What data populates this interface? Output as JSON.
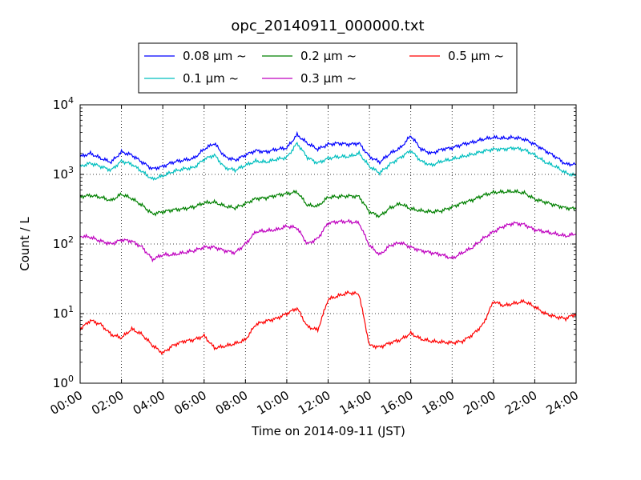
{
  "chart_data": {
    "type": "line",
    "title": "opc_20140911_000000.txt",
    "xlabel": "Time on 2014-09-11 (JST)",
    "ylabel": "Count / L",
    "xlim": [
      0,
      24
    ],
    "ylim": [
      1,
      10000
    ],
    "yscale": "log",
    "grid": true,
    "legend_placement": "top-center",
    "x_ticks": [
      {
        "value": 0,
        "label": "00:00"
      },
      {
        "value": 2,
        "label": "02:00"
      },
      {
        "value": 4,
        "label": "04:00"
      },
      {
        "value": 6,
        "label": "06:00"
      },
      {
        "value": 8,
        "label": "08:00"
      },
      {
        "value": 10,
        "label": "10:00"
      },
      {
        "value": 12,
        "label": "12:00"
      },
      {
        "value": 14,
        "label": "14:00"
      },
      {
        "value": 16,
        "label": "16:00"
      },
      {
        "value": 18,
        "label": "18:00"
      },
      {
        "value": 20,
        "label": "20:00"
      },
      {
        "value": 22,
        "label": "22:00"
      },
      {
        "value": 24,
        "label": "24:00"
      }
    ],
    "y_ticks": [
      {
        "value": 1,
        "base": "10",
        "exp": "0"
      },
      {
        "value": 10,
        "base": "10",
        "exp": "1"
      },
      {
        "value": 100,
        "base": "10",
        "exp": "2"
      },
      {
        "value": 1000,
        "base": "10",
        "exp": "3"
      },
      {
        "value": 10000,
        "base": "10",
        "exp": "4"
      }
    ],
    "x": [
      0,
      0.5,
      1,
      1.5,
      2,
      2.5,
      3,
      3.5,
      4,
      4.5,
      5,
      5.5,
      6,
      6.5,
      7,
      7.5,
      8,
      8.5,
      9,
      9.5,
      10,
      10.5,
      11,
      11.5,
      12,
      12.5,
      13,
      13.5,
      14,
      14.5,
      15,
      15.5,
      16,
      16.5,
      17,
      17.5,
      18,
      18.5,
      19,
      19.5,
      20,
      20.5,
      21,
      21.5,
      22,
      22.5,
      23,
      23.5,
      24
    ],
    "series": [
      {
        "name": "0.08 μm ~",
        "size": "0.08",
        "color": "#0000ff",
        "values": [
          1800,
          2000,
          1700,
          1500,
          2100,
          1900,
          1500,
          1200,
          1300,
          1500,
          1600,
          1700,
          2300,
          2800,
          1800,
          1600,
          1900,
          2200,
          2100,
          2300,
          2400,
          3700,
          2800,
          2300,
          2700,
          2800,
          2700,
          2800,
          1800,
          1500,
          2000,
          2400,
          3600,
          2300,
          2000,
          2300,
          2400,
          2700,
          2900,
          3200,
          3400,
          3300,
          3400,
          3200,
          2700,
          2200,
          1800,
          1400,
          1400
        ]
      },
      {
        "name": "0.1 μm ~",
        "size": "0.1",
        "color": "#00bfbf",
        "values": [
          1300,
          1450,
          1300,
          1150,
          1550,
          1400,
          1100,
          850,
          950,
          1100,
          1200,
          1250,
          1650,
          1900,
          1250,
          1150,
          1350,
          1550,
          1500,
          1650,
          1750,
          2800,
          1750,
          1450,
          1700,
          1800,
          1800,
          2000,
          1300,
          1050,
          1400,
          1750,
          2200,
          1550,
          1350,
          1550,
          1650,
          1800,
          1950,
          2150,
          2300,
          2300,
          2400,
          2250,
          1900,
          1500,
          1300,
          1050,
          950
        ]
      },
      {
        "name": "0.2 μm ~",
        "size": "0.2",
        "color": "#008000",
        "values": [
          480,
          500,
          470,
          420,
          520,
          450,
          360,
          270,
          290,
          310,
          320,
          340,
          390,
          400,
          350,
          330,
          380,
          450,
          460,
          500,
          530,
          560,
          360,
          350,
          470,
          480,
          490,
          480,
          290,
          250,
          330,
          380,
          320,
          300,
          290,
          300,
          340,
          390,
          430,
          500,
          550,
          560,
          570,
          540,
          440,
          400,
          360,
          330,
          320
        ]
      },
      {
        "name": "0.3 μm ~",
        "size": "0.3",
        "color": "#bf00bf",
        "values": [
          130,
          125,
          110,
          100,
          115,
          110,
          90,
          60,
          70,
          70,
          75,
          80,
          90,
          90,
          80,
          75,
          100,
          150,
          155,
          160,
          180,
          170,
          100,
          120,
          200,
          210,
          210,
          200,
          95,
          70,
          95,
          105,
          90,
          80,
          75,
          70,
          62,
          75,
          90,
          120,
          150,
          180,
          200,
          190,
          160,
          150,
          140,
          130,
          140
        ]
      },
      {
        "name": "0.5 μm ~",
        "size": "0.5",
        "color": "#ff0000",
        "values": [
          6,
          8,
          7,
          5,
          4.5,
          6,
          5,
          3.5,
          2.7,
          3.5,
          4,
          4.2,
          4.8,
          3.2,
          3.4,
          3.7,
          4.2,
          7,
          7.8,
          8.5,
          10,
          12,
          6.5,
          5.8,
          16,
          18,
          20,
          19,
          3.5,
          3.3,
          3.8,
          4.2,
          5.2,
          4.3,
          4.0,
          3.9,
          3.8,
          4.0,
          5.0,
          7.0,
          15.0,
          13.0,
          14.0,
          15.0,
          12.5,
          10.0,
          9.0,
          8.5,
          10.0
        ]
      }
    ],
    "unit_label": "μm",
    "tilde": "~"
  }
}
